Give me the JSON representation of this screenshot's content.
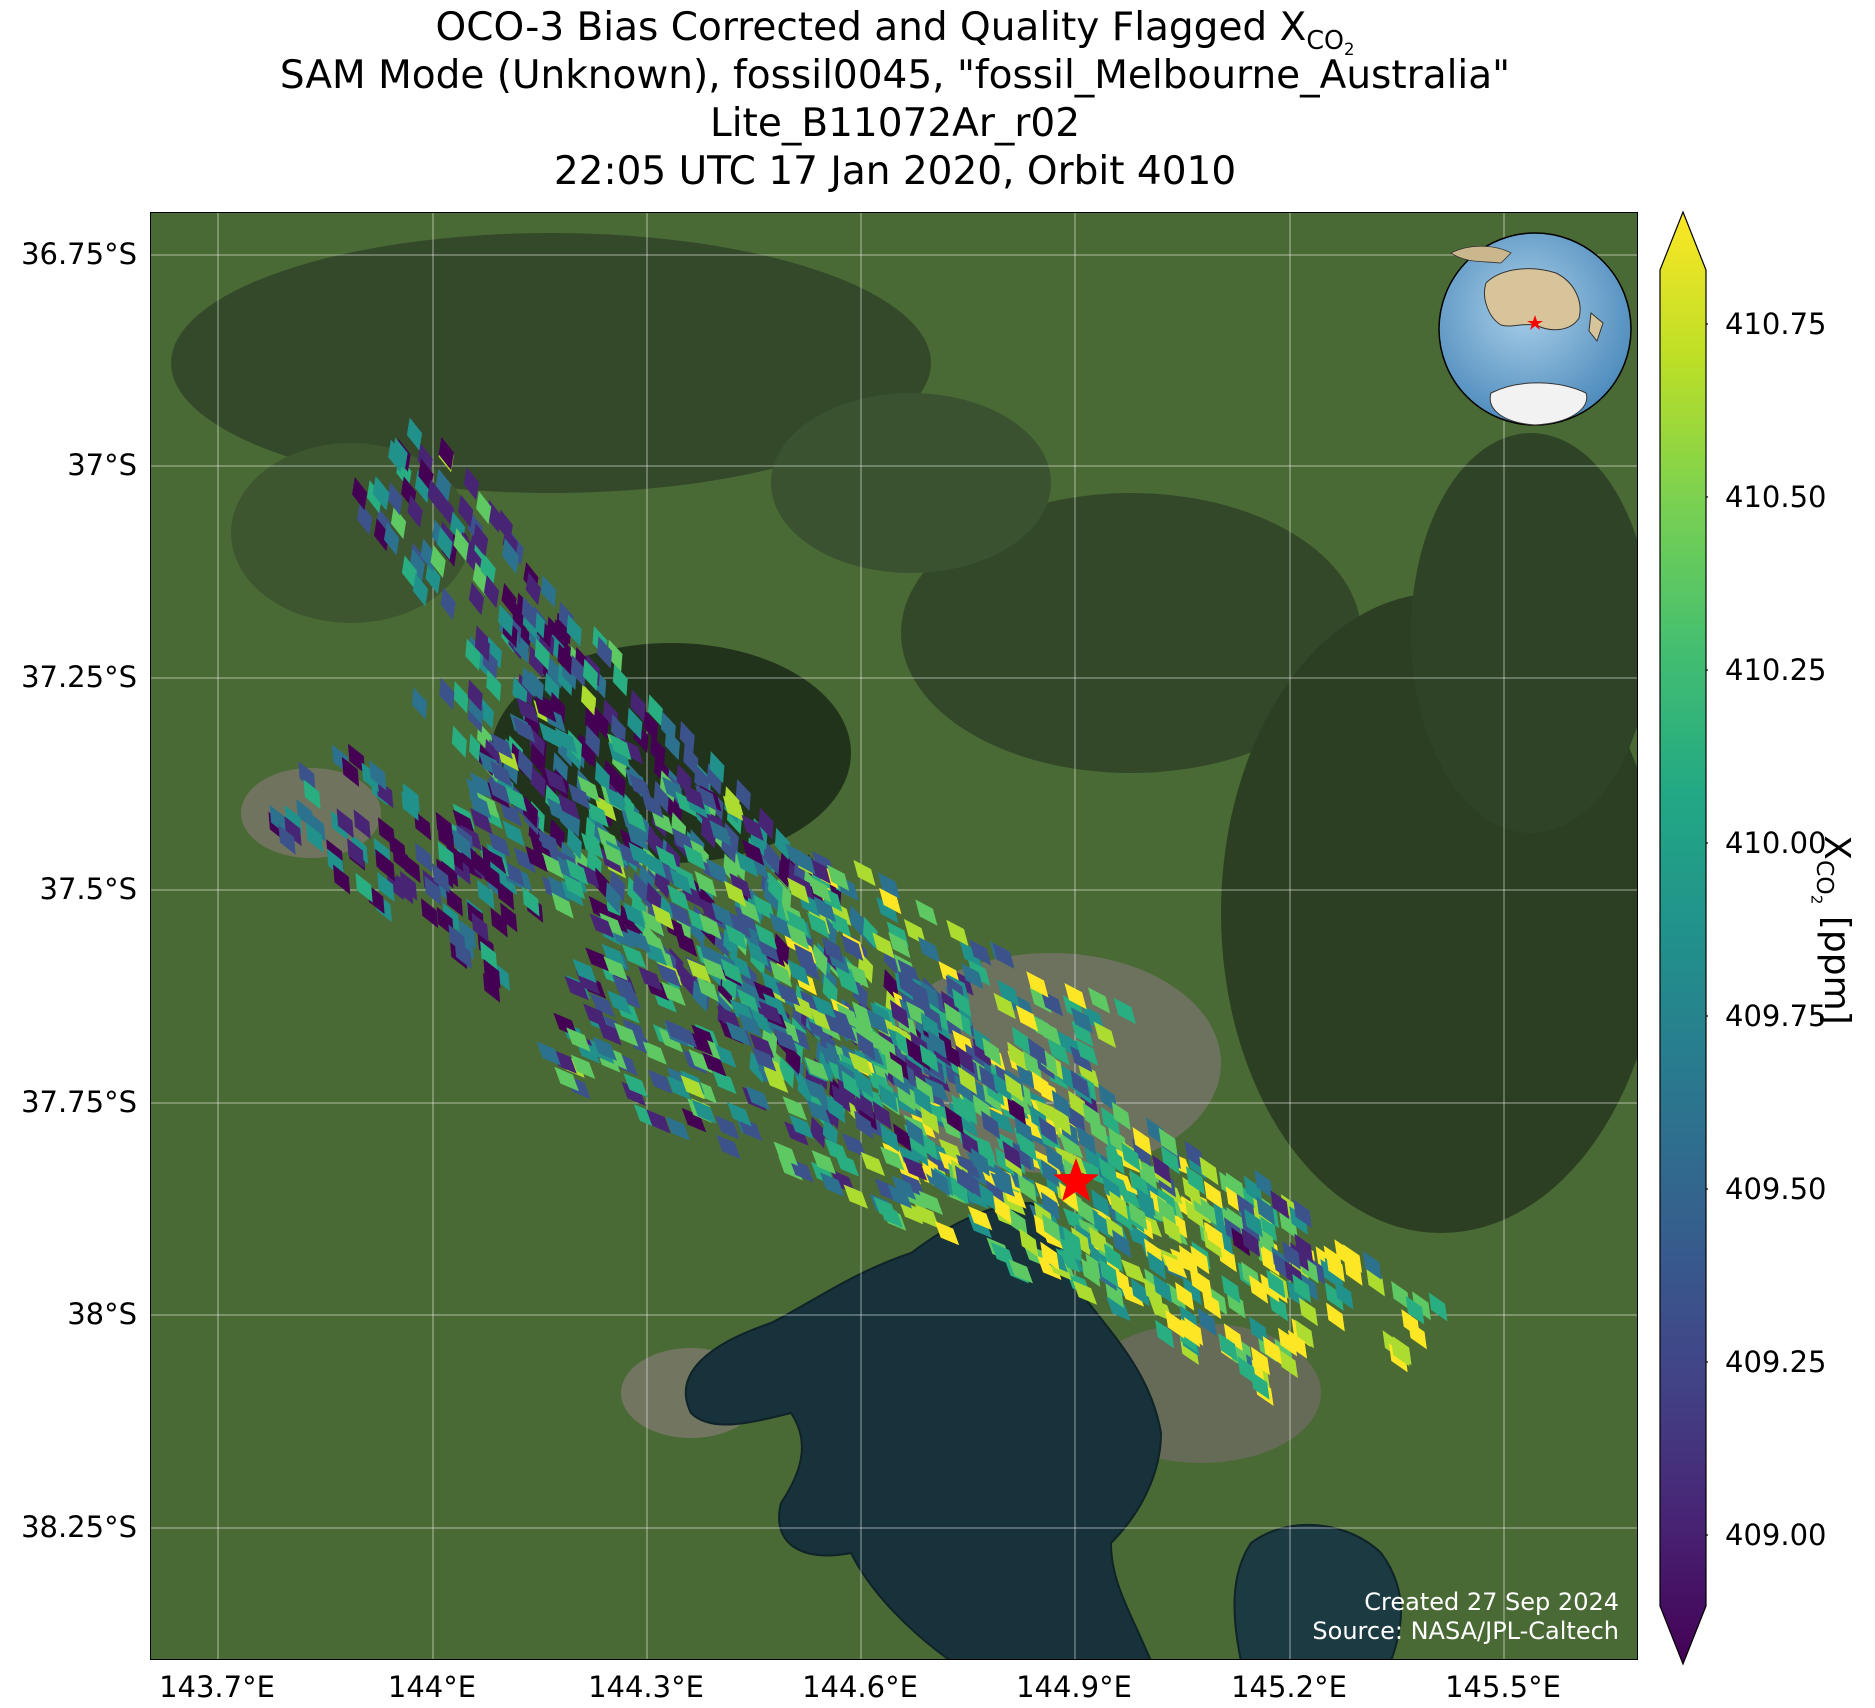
{
  "title": {
    "line1_prefix": "OCO-3 Bias Corrected and Quality Flagged X",
    "line1_sub": "CO",
    "line1_subsub": "2",
    "line2": "SAM Mode (Unknown), fossil0045, \"fossil_Melbourne_Australia\"",
    "line3": "Lite_B11072Ar_r02",
    "line4": "22:05 UTC 17 Jan 2020, Orbit 4010"
  },
  "map": {
    "lat_ticks": [
      "36.75°S",
      "37°S",
      "37.25°S",
      "37.5°S",
      "37.75°S",
      "38°S",
      "38.25°S"
    ],
    "lon_ticks": [
      "143.7°E",
      "144°E",
      "144.3°E",
      "144.6°E",
      "144.9°E",
      "145.2°E",
      "145.5°E"
    ],
    "target_marker": "red-star",
    "colors": {
      "land": "#4a6a35",
      "forest": "#2c3f22",
      "water": "#17323a",
      "urban": "#7a766c",
      "star": "#ff0000"
    }
  },
  "colorbar": {
    "ticks": [
      "410.75",
      "410.50",
      "410.25",
      "410.00",
      "409.75",
      "409.50",
      "409.25",
      "409.00"
    ],
    "label_prefix": "X",
    "label_sub": "CO",
    "label_subsub": "2",
    "label_suffix": " [ppm]",
    "colormap": [
      "#440154",
      "#3b528b",
      "#21918c",
      "#5ec962",
      "#fde725"
    ]
  },
  "credit": {
    "line1": "Created 27 Sep 2024",
    "line2": "Source: NASA/JPL-Caltech"
  }
}
